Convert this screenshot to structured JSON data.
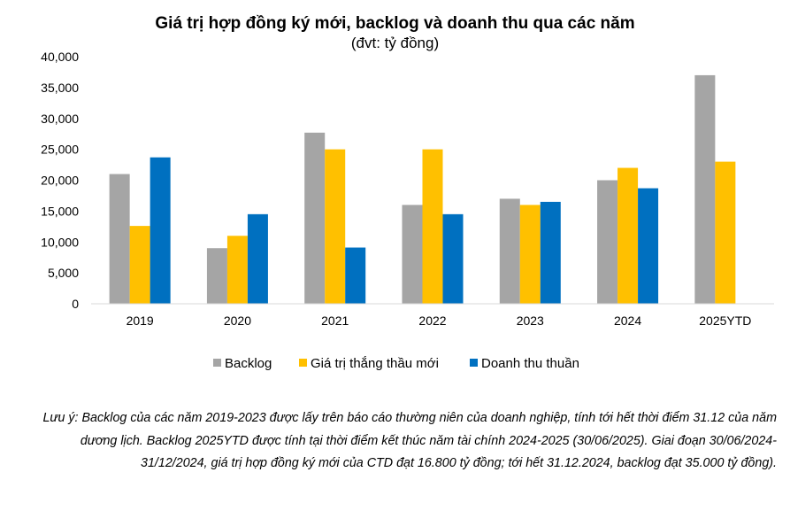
{
  "chart_data": {
    "type": "bar",
    "title": "Giá trị hợp đồng ký mới, backlog và doanh thu qua các năm",
    "subtitle": "(đvt: tỷ đồng)",
    "xlabel": "",
    "ylabel": "",
    "categories": [
      "2019",
      "2020",
      "2021",
      "2022",
      "2023",
      "2024",
      "2025YTD"
    ],
    "ylim": [
      0,
      40000
    ],
    "yticks": [
      0,
      5000,
      10000,
      15000,
      20000,
      25000,
      30000,
      35000,
      40000
    ],
    "ytick_labels": [
      "0",
      "5,000",
      "10,000",
      "15,000",
      "20,000",
      "25,000",
      "30,000",
      "35,000",
      "40,000"
    ],
    "grid": false,
    "legend_position": "bottom",
    "series": [
      {
        "name": "Backlog",
        "color": "#a5a5a5",
        "values": [
          21000,
          9000,
          27700,
          16000,
          17000,
          20000,
          37000
        ]
      },
      {
        "name": "Giá trị thắng thầu mới",
        "color": "#ffc000",
        "values": [
          12600,
          11000,
          25000,
          25000,
          16000,
          22000,
          23000
        ]
      },
      {
        "name": "Doanh thu thuần",
        "color": "#0070c0",
        "values": [
          23700,
          14500,
          9100,
          14500,
          16500,
          18700,
          null
        ]
      }
    ]
  },
  "note": "Lưu ý: Backlog của các năm 2019-2023 được lấy trên báo cáo thường niên của doanh nghiệp, tính tới hết thời điểm 31.12 của năm dương lịch. Backlog 2025YTD được tính tại thời điểm kết thúc năm tài chính 2024-2025 (30/06/2025). Giai đoạn 30/06/2024-31/12/2024, giá trị hợp đồng ký mới của CTD đạt 16.800 tỷ đồng; tới hết 31.12.2024, backlog đạt 35.000 tỷ đồng)."
}
